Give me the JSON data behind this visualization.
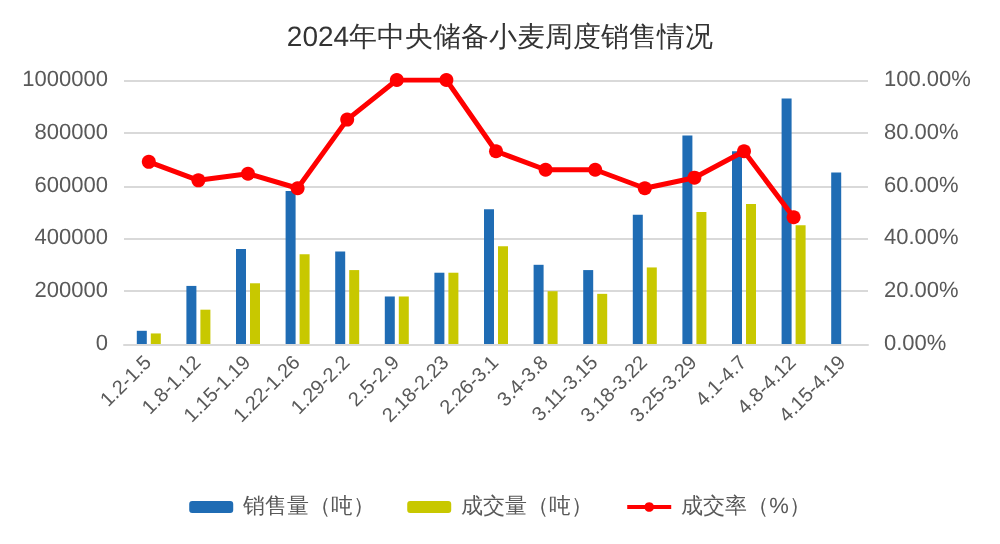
{
  "chart_data": {
    "type": "bar",
    "title": "2024年中央储备小麦周度销售情况",
    "categories": [
      "1.2-1.5",
      "1.8-1.12",
      "1.15-1.19",
      "1.22-1.26",
      "1.29-2.2",
      "2.5-2.9",
      "2.18-2.23",
      "2.26-3.1",
      "3.4-3.8",
      "3.11-3.15",
      "3.18-3.22",
      "3.25-3.29",
      "4.1-4.7",
      "4.8-4.12",
      "4.15-4.19"
    ],
    "series": [
      {
        "name": "销售量（吨）",
        "color": "#1f6cb4",
        "values": [
          50000,
          220000,
          360000,
          580000,
          350000,
          180000,
          270000,
          510000,
          300000,
          280000,
          490000,
          790000,
          730000,
          930000,
          650000
        ]
      },
      {
        "name": "成交量（吨）",
        "color": "#c8c800",
        "values": [
          40000,
          130000,
          230000,
          340000,
          280000,
          180000,
          270000,
          370000,
          200000,
          190000,
          290000,
          500000,
          530000,
          450000,
          null
        ]
      },
      {
        "name": "成交率（%）",
        "type": "line",
        "axis": "y2",
        "color": "#ff0000",
        "values": [
          69,
          62,
          64.5,
          59,
          85,
          100,
          100,
          73,
          66,
          66,
          59,
          63,
          73,
          48,
          null
        ]
      }
    ],
    "ylim": [
      0,
      1000000
    ],
    "yticks": [
      0,
      200000,
      400000,
      600000,
      800000,
      1000000
    ],
    "y2lim": [
      0,
      100
    ],
    "y2ticks": [
      {
        "value": 0,
        "label": "0.00%"
      },
      {
        "value": 20,
        "label": "20.00%"
      },
      {
        "value": 40,
        "label": "40.00%"
      },
      {
        "value": 60,
        "label": "60.00%"
      },
      {
        "value": 80,
        "label": "80.00%"
      },
      {
        "value": 100,
        "label": "100.00%"
      }
    ],
    "grid": "y",
    "legend": "bottom",
    "marker": "circle",
    "line_style": "solid"
  }
}
